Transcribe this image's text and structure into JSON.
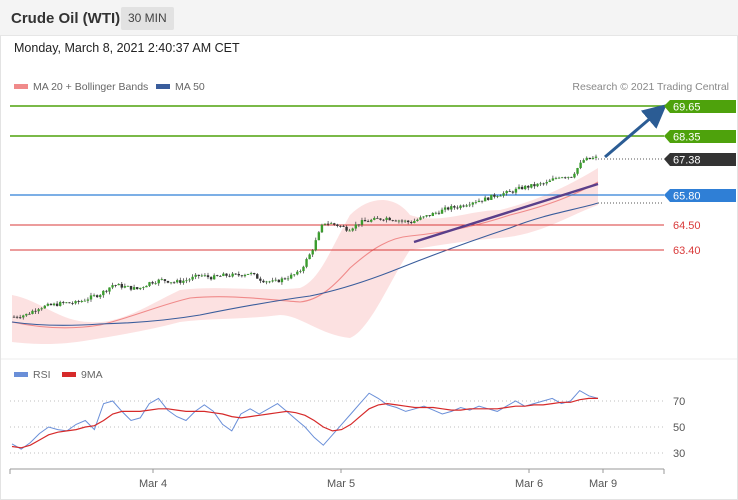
{
  "header": {
    "title": "Crude Oil (WTI)",
    "interval": "30 MIN"
  },
  "timestamp": "Monday, March 8, 2021 2:40:37 AM CET",
  "legend": {
    "ma20": "MA 20 + Bollinger Bands",
    "ma50": "MA 50",
    "credit": "Research © 2021 Trading Central",
    "rsi": "RSI",
    "ma9": "9MA"
  },
  "colors": {
    "resistance": "#4ea20c",
    "pivot": "#2f7fd6",
    "support": "#d93a3a",
    "current": "#333333",
    "arrow": "#2b5c94",
    "trendline": "#5a3f8a",
    "ma20": "#f08a8a",
    "ma50": "#3a5d9c",
    "bollinger": "#fbdcdc",
    "rsi": "#6a8fd8",
    "rsi_ma": "#d62a2a"
  },
  "chart_data": [
    {
      "type": "candlestick",
      "title": "Crude Oil (WTI)",
      "x_labels": [
        "Mar 4",
        "Mar 5",
        "Mar 6",
        "Mar 9"
      ],
      "ylim": [
        62.0,
        70.0
      ],
      "levels": [
        {
          "value": 69.65,
          "label": "69.65",
          "kind": "resistance"
        },
        {
          "value": 68.35,
          "label": "68.35",
          "kind": "resistance"
        },
        {
          "value": 67.38,
          "label": "67.38",
          "kind": "current"
        },
        {
          "value": 65.8,
          "label": "65.80",
          "kind": "pivot"
        },
        {
          "value": 64.5,
          "label": "64.50",
          "kind": "support"
        },
        {
          "value": 63.4,
          "label": "63.40",
          "kind": "support"
        }
      ],
      "series": [
        {
          "name": "MA 20 + Bollinger Bands"
        },
        {
          "name": "MA 50"
        }
      ],
      "price_path": [
        60.5,
        60.6,
        60.9,
        61.0,
        61.1,
        61.1,
        61.3,
        61.5,
        61.9,
        61.8,
        61.7,
        62.0,
        62.1,
        62.0,
        62.1,
        62.3,
        62.2,
        62.3,
        62.3,
        62.4,
        62.1,
        62.0,
        62.2,
        62.4,
        63.3,
        64.6,
        64.5,
        64.3,
        64.6,
        64.7,
        64.8,
        64.7,
        64.6,
        64.8,
        65.0,
        65.2,
        65.3,
        65.5,
        65.6,
        65.8,
        65.9,
        66.1,
        66.2,
        66.3,
        66.6,
        66.6,
        67.3,
        67.4
      ]
    },
    {
      "type": "line",
      "title": "RSI",
      "yticks": [
        30,
        50,
        70
      ],
      "ylim": [
        20,
        90
      ],
      "series": [
        {
          "name": "RSI",
          "values": [
            37,
            33,
            38,
            45,
            50,
            48,
            47,
            52,
            55,
            48,
            68,
            70,
            62,
            55,
            57,
            68,
            72,
            63,
            58,
            55,
            62,
            67,
            62,
            52,
            47,
            60,
            64,
            60,
            64,
            68,
            62,
            56,
            50,
            42,
            36,
            44,
            52,
            60,
            68,
            76,
            72,
            67,
            65,
            62,
            64,
            66,
            63,
            60,
            62,
            65,
            63,
            66,
            64,
            62,
            66,
            70,
            66,
            68,
            70,
            72,
            68,
            70,
            78,
            74,
            72
          ]
        },
        {
          "name": "9MA",
          "values": [
            35,
            34,
            36,
            40,
            44,
            46,
            47,
            48,
            50,
            51,
            55,
            60,
            62,
            62,
            62,
            63,
            64,
            64,
            63,
            62,
            62,
            62,
            61,
            60,
            58,
            57,
            58,
            59,
            60,
            61,
            62,
            61,
            59,
            55,
            50,
            47,
            48,
            52,
            58,
            64,
            67,
            68,
            67,
            66,
            65,
            65,
            65,
            64,
            63,
            63,
            64,
            64,
            64,
            64,
            65,
            66,
            66,
            67,
            67,
            68,
            69,
            69,
            71,
            72,
            72
          ]
        }
      ]
    }
  ]
}
